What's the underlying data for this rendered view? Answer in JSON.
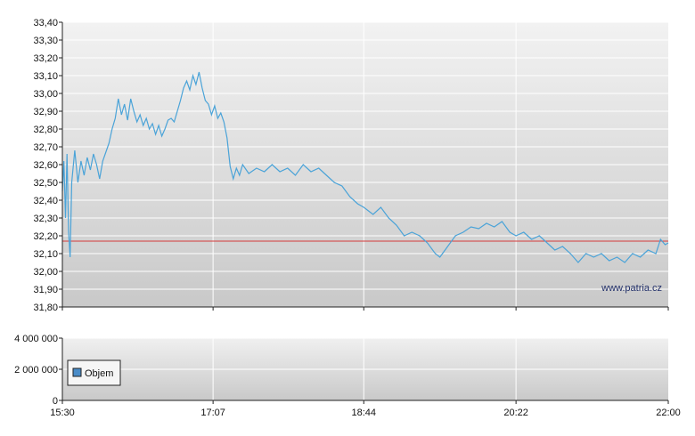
{
  "watermark": "www.patria.cz",
  "chart_data": [
    {
      "type": "line",
      "name": "price",
      "x_labels": [
        "15:30",
        "17:07",
        "18:44",
        "20:22",
        "22:00"
      ],
      "y_ticks": [
        "31,80",
        "31,90",
        "32,00",
        "32,10",
        "32,20",
        "32,30",
        "32,40",
        "32,50",
        "32,60",
        "32,70",
        "32,80",
        "32,90",
        "33,00",
        "33,10",
        "33,20",
        "33,30",
        "33,40"
      ],
      "ylim": [
        31.8,
        33.4
      ],
      "grid": true,
      "reference_line": {
        "value": 32.17,
        "color": "#d43a3a"
      },
      "line_color": "#4aa3d8",
      "series": [
        {
          "points": [
            [
              "15:30",
              32.45
            ],
            [
              "15:31",
              32.62
            ],
            [
              "15:32",
              32.3
            ],
            [
              "15:33",
              32.66
            ],
            [
              "15:34",
              32.22
            ],
            [
              "15:35",
              32.08
            ],
            [
              "15:36",
              32.5
            ],
            [
              "15:38",
              32.68
            ],
            [
              "15:40",
              32.5
            ],
            [
              "15:42",
              32.62
            ],
            [
              "15:44",
              32.54
            ],
            [
              "15:46",
              32.64
            ],
            [
              "15:48",
              32.57
            ],
            [
              "15:50",
              32.66
            ],
            [
              "15:52",
              32.6
            ],
            [
              "15:54",
              32.52
            ],
            [
              "15:56",
              32.62
            ],
            [
              "15:58",
              32.67
            ],
            [
              "16:00",
              32.72
            ],
            [
              "16:02",
              32.8
            ],
            [
              "16:04",
              32.86
            ],
            [
              "16:06",
              32.97
            ],
            [
              "16:08",
              32.88
            ],
            [
              "16:10",
              32.94
            ],
            [
              "16:12",
              32.85
            ],
            [
              "16:14",
              32.97
            ],
            [
              "16:16",
              32.9
            ],
            [
              "16:18",
              32.84
            ],
            [
              "16:20",
              32.88
            ],
            [
              "16:22",
              32.82
            ],
            [
              "16:24",
              32.86
            ],
            [
              "16:26",
              32.8
            ],
            [
              "16:28",
              32.83
            ],
            [
              "16:30",
              32.77
            ],
            [
              "16:32",
              32.82
            ],
            [
              "16:34",
              32.76
            ],
            [
              "16:36",
              32.8
            ],
            [
              "16:38",
              32.85
            ],
            [
              "16:40",
              32.86
            ],
            [
              "16:42",
              32.84
            ],
            [
              "16:44",
              32.9
            ],
            [
              "16:46",
              32.96
            ],
            [
              "16:48",
              33.03
            ],
            [
              "16:50",
              33.07
            ],
            [
              "16:52",
              33.02
            ],
            [
              "16:54",
              33.1
            ],
            [
              "16:56",
              33.05
            ],
            [
              "16:58",
              33.12
            ],
            [
              "17:00",
              33.03
            ],
            [
              "17:02",
              32.96
            ],
            [
              "17:04",
              32.94
            ],
            [
              "17:06",
              32.88
            ],
            [
              "17:08",
              32.93
            ],
            [
              "17:10",
              32.86
            ],
            [
              "17:12",
              32.89
            ],
            [
              "17:14",
              32.84
            ],
            [
              "17:16",
              32.75
            ],
            [
              "17:18",
              32.59
            ],
            [
              "17:20",
              32.52
            ],
            [
              "17:22",
              32.58
            ],
            [
              "17:24",
              32.54
            ],
            [
              "17:26",
              32.6
            ],
            [
              "17:30",
              32.55
            ],
            [
              "17:35",
              32.58
            ],
            [
              "17:40",
              32.56
            ],
            [
              "17:45",
              32.6
            ],
            [
              "17:50",
              32.56
            ],
            [
              "17:55",
              32.58
            ],
            [
              "18:00",
              32.54
            ],
            [
              "18:05",
              32.6
            ],
            [
              "18:10",
              32.56
            ],
            [
              "18:15",
              32.58
            ],
            [
              "18:20",
              32.54
            ],
            [
              "18:25",
              32.5
            ],
            [
              "18:30",
              32.48
            ],
            [
              "18:35",
              32.42
            ],
            [
              "18:40",
              32.38
            ],
            [
              "18:44",
              32.36
            ],
            [
              "18:50",
              32.32
            ],
            [
              "18:55",
              32.36
            ],
            [
              "19:00",
              32.3
            ],
            [
              "19:05",
              32.26
            ],
            [
              "19:10",
              32.2
            ],
            [
              "19:15",
              32.22
            ],
            [
              "19:20",
              32.2
            ],
            [
              "19:25",
              32.16
            ],
            [
              "19:30",
              32.1
            ],
            [
              "19:33",
              32.08
            ],
            [
              "19:38",
              32.14
            ],
            [
              "19:43",
              32.2
            ],
            [
              "19:48",
              32.22
            ],
            [
              "19:53",
              32.25
            ],
            [
              "19:58",
              32.24
            ],
            [
              "20:03",
              32.27
            ],
            [
              "20:08",
              32.25
            ],
            [
              "20:13",
              32.28
            ],
            [
              "20:18",
              32.22
            ],
            [
              "20:22",
              32.2
            ],
            [
              "20:27",
              32.22
            ],
            [
              "20:32",
              32.18
            ],
            [
              "20:37",
              32.2
            ],
            [
              "20:42",
              32.16
            ],
            [
              "20:47",
              32.12
            ],
            [
              "20:52",
              32.14
            ],
            [
              "20:57",
              32.1
            ],
            [
              "21:02",
              32.05
            ],
            [
              "21:07",
              32.1
            ],
            [
              "21:12",
              32.08
            ],
            [
              "21:17",
              32.1
            ],
            [
              "21:22",
              32.06
            ],
            [
              "21:27",
              32.08
            ],
            [
              "21:32",
              32.05
            ],
            [
              "21:37",
              32.1
            ],
            [
              "21:42",
              32.08
            ],
            [
              "21:47",
              32.12
            ],
            [
              "21:52",
              32.1
            ],
            [
              "21:55",
              32.18
            ],
            [
              "21:58",
              32.15
            ],
            [
              "22:00",
              32.16
            ]
          ]
        }
      ]
    },
    {
      "type": "bar",
      "name": "volume",
      "x_labels": [
        "15:30",
        "17:07",
        "18:44",
        "20:22",
        "22:00"
      ],
      "y_ticks": [
        "0",
        "2 000 000",
        "4 000 000"
      ],
      "ylim": [
        0,
        4000000
      ],
      "grid": true,
      "legend": {
        "label": "Objem",
        "color": "#4a8cc8",
        "position": "left"
      },
      "series": [
        {
          "name": "Objem",
          "points": [
            [
              "19:55",
              15000
            ],
            [
              "20:00",
              20000
            ],
            [
              "20:05",
              12000
            ]
          ]
        }
      ]
    }
  ]
}
